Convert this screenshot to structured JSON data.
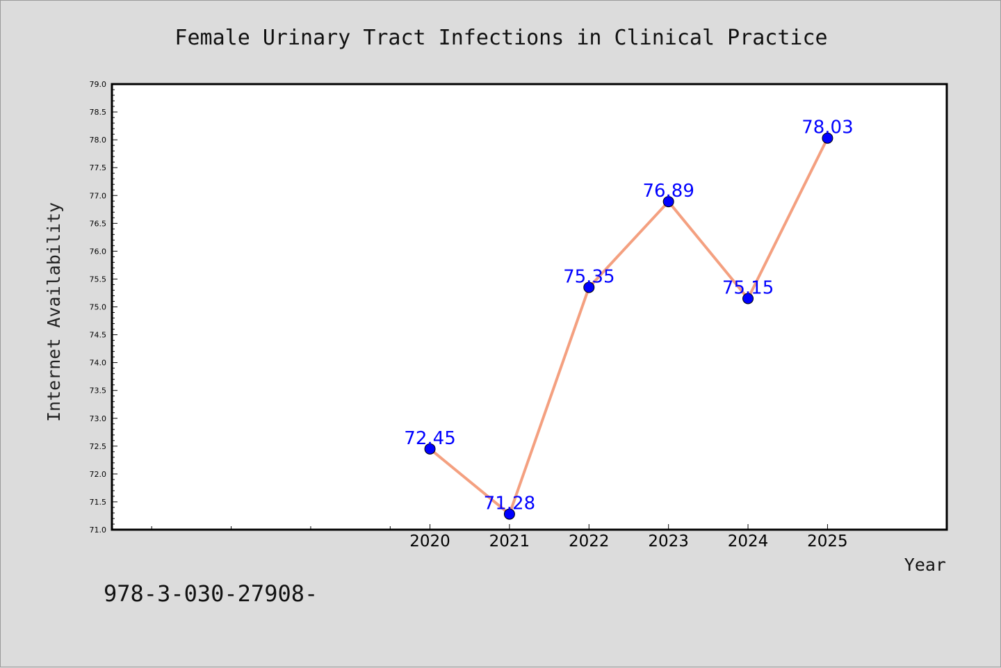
{
  "chart_data": {
    "type": "line",
    "title": "Female Urinary Tract Infections in Clinical Practice",
    "xlabel": "Year",
    "ylabel": "Internet Availability",
    "categories": [
      "2020",
      "2021",
      "2022",
      "2023",
      "2024",
      "2025"
    ],
    "x": [
      2020,
      2021,
      2022,
      2023,
      2024,
      2025
    ],
    "values": [
      72.45,
      71.28,
      75.35,
      76.89,
      75.15,
      78.03
    ],
    "data_labels": [
      "72.45",
      "71.28",
      "75.35",
      "76.89",
      "75.15",
      "78.03"
    ],
    "ylim": [
      71.0,
      79.0
    ],
    "xlim": [
      2016,
      2026.5
    ],
    "yticks": [
      "71.0",
      "71.5",
      "72.0",
      "72.5",
      "73.0",
      "73.5",
      "74.0",
      "74.5",
      "75.0",
      "75.5",
      "76.0",
      "76.5",
      "77.0",
      "77.5",
      "78.0",
      "78.5",
      "79.0"
    ],
    "grid": false,
    "legend": "none",
    "colors": {
      "line": "#f4a080",
      "marker": "#0000ff",
      "data_label": "#0000ff",
      "plot_background": "#ffffff",
      "page_background": "#dcdcdc"
    }
  },
  "footer_text": "978-3-030-27908-"
}
